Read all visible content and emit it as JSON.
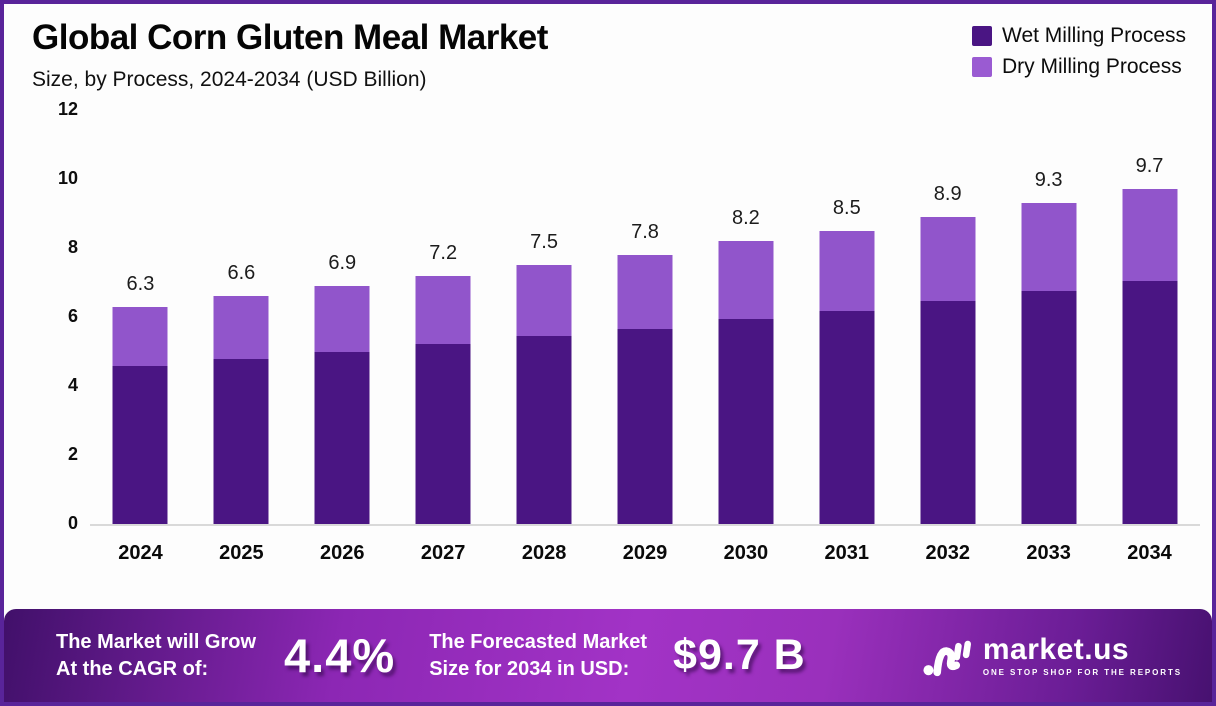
{
  "header": {
    "title": "Global Corn Gluten Meal Market",
    "subtitle": "Size, by Process, 2024-2034 (USD Billion)"
  },
  "legend": [
    {
      "label": "Wet Milling Process",
      "color": "#4a1583"
    },
    {
      "label": "Dry Milling Process",
      "color": "#9a5bd2"
    }
  ],
  "chart_data": {
    "type": "bar",
    "stacked": true,
    "categories": [
      "2024",
      "2025",
      "2026",
      "2027",
      "2028",
      "2029",
      "2030",
      "2031",
      "2032",
      "2033",
      "2034"
    ],
    "series": [
      {
        "name": "Wet Milling Process",
        "color": "#4a1583",
        "values": [
          4.57,
          4.79,
          5.0,
          5.22,
          5.44,
          5.66,
          5.95,
          6.17,
          6.46,
          6.74,
          7.03
        ]
      },
      {
        "name": "Dry Milling Process",
        "color": "#9155cb",
        "values": [
          1.73,
          1.81,
          1.9,
          1.98,
          2.06,
          2.14,
          2.25,
          2.33,
          2.44,
          2.56,
          2.67
        ]
      }
    ],
    "totals": [
      6.3,
      6.6,
      6.9,
      7.2,
      7.5,
      7.8,
      8.2,
      8.5,
      8.9,
      9.3,
      9.7
    ],
    "title": "Global Corn Gluten Meal Market Size, by Process, 2024-2034 (USD Billion)",
    "xlabel": "",
    "ylabel": "",
    "ylim": [
      0,
      12
    ],
    "yticks": [
      0,
      2,
      4,
      6,
      8,
      10,
      12
    ],
    "grid": false,
    "legend_position": "top-right"
  },
  "footer": {
    "cagr_label_line1": "The Market will Grow",
    "cagr_label_line2": "At the CAGR of:",
    "cagr_value": "4.4%",
    "forecast_label_line1": "The Forecasted Market",
    "forecast_label_line2": "Size for 2034 in USD:",
    "forecast_value": "$9.7 B",
    "brand": {
      "name": "market.us",
      "tagline": "ONE STOP SHOP FOR THE REPORTS"
    }
  }
}
